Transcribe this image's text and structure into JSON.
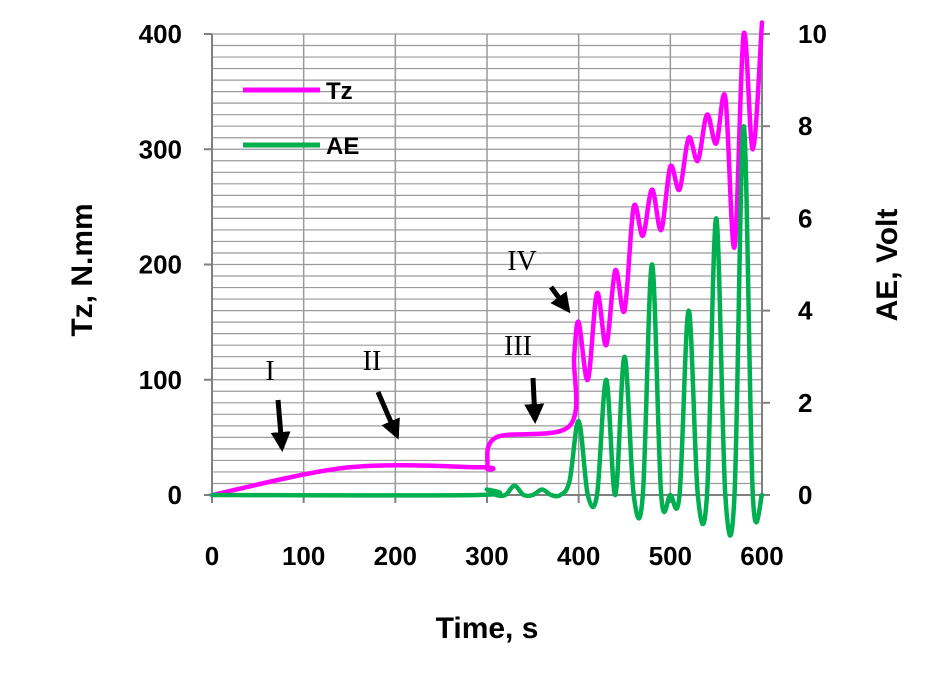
{
  "chart_data": {
    "type": "line",
    "xlabel": "Time, s",
    "ylabel_left": "Tz, N.mm",
    "ylabel_right": "AE, Volt",
    "xlim": [
      0,
      600
    ],
    "ylim_left": [
      0,
      400
    ],
    "ylim_right": [
      0,
      10
    ],
    "x_ticks": [
      0,
      100,
      200,
      300,
      400,
      500,
      600
    ],
    "y_ticks_left": [
      0,
      100,
      200,
      300,
      400
    ],
    "y_ticks_right": [
      0,
      2,
      4,
      6,
      8,
      10
    ],
    "grid": true,
    "legend_position": "top-left",
    "series": [
      {
        "name": "Tz",
        "axis": "left",
        "color": "#ff00ff",
        "x": [
          0,
          150,
          295,
          300,
          310,
          390,
          395,
          400,
          410,
          420,
          430,
          440,
          450,
          460,
          470,
          480,
          490,
          500,
          510,
          520,
          530,
          540,
          550,
          560,
          570,
          580,
          590,
          600
        ],
        "y": [
          0,
          24,
          24,
          24,
          50,
          60,
          120,
          150,
          100,
          175,
          130,
          195,
          160,
          250,
          225,
          265,
          230,
          285,
          265,
          310,
          290,
          330,
          305,
          345,
          215,
          400,
          300,
          410
        ]
      },
      {
        "name": "AE",
        "axis": "right",
        "color": "#00b050",
        "x": [
          0,
          290,
          300,
          310,
          320,
          330,
          340,
          350,
          360,
          370,
          380,
          390,
          400,
          410,
          420,
          430,
          440,
          450,
          460,
          470,
          480,
          490,
          500,
          510,
          520,
          530,
          540,
          550,
          560,
          570,
          580,
          590,
          600
        ],
        "y": [
          0,
          0,
          0.12,
          0,
          0,
          0.2,
          0,
          0,
          0.12,
          0,
          0,
          0.3,
          1.6,
          0,
          0,
          2.5,
          0,
          3.0,
          0,
          0,
          5.0,
          0,
          0,
          0,
          4.0,
          0,
          0,
          6.0,
          0,
          0,
          8.0,
          0,
          0
        ]
      }
    ],
    "annotations": [
      {
        "label": "I",
        "x": 75,
        "y": 85
      },
      {
        "label": "II",
        "x": 205,
        "y": 85
      },
      {
        "label": "III",
        "x": 360,
        "y": 110
      },
      {
        "label": "IV",
        "x": 390,
        "y": 175
      }
    ]
  }
}
